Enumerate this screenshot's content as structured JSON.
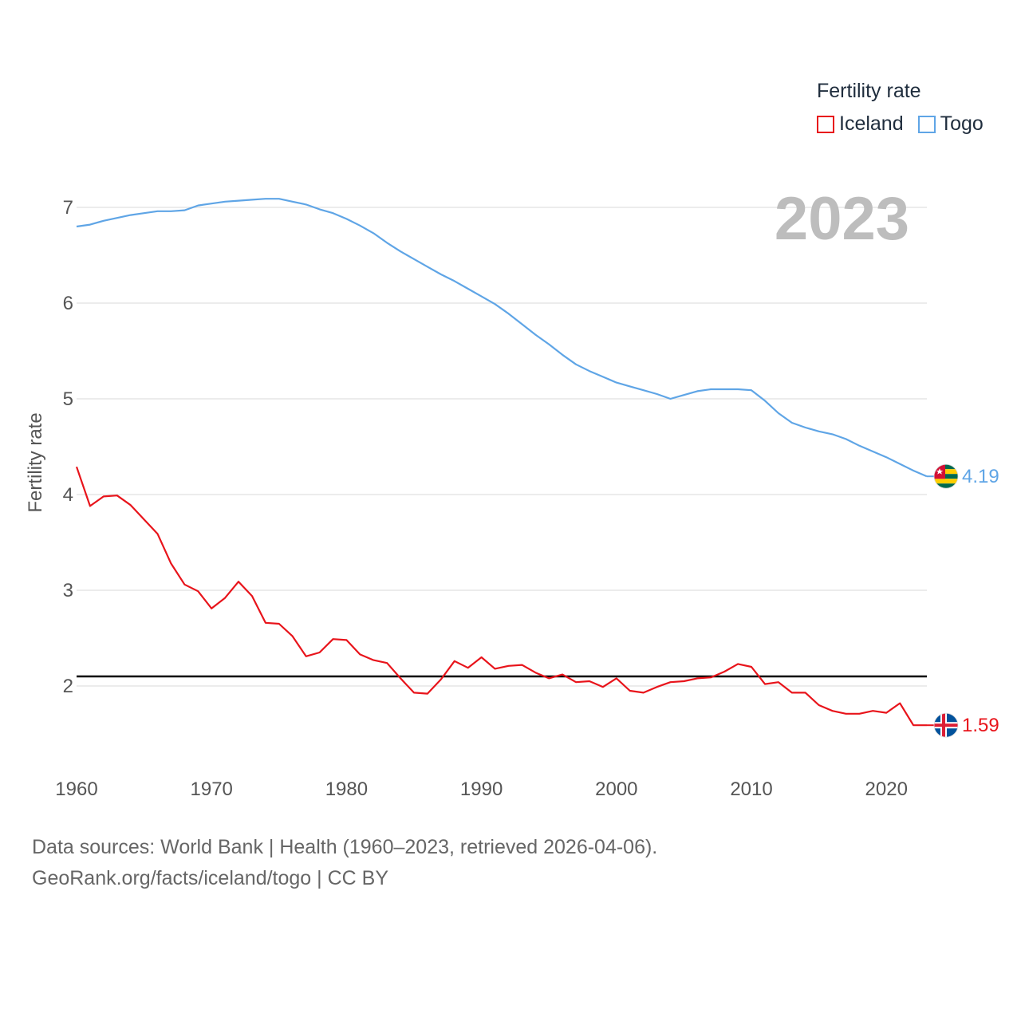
{
  "legend": {
    "title": "Fertility rate",
    "items": [
      {
        "name": "Iceland",
        "color": "#e8141b"
      },
      {
        "name": "Togo",
        "color": "#5fa5e6"
      }
    ]
  },
  "footer": {
    "line1": "Data sources: World Bank | Health (1960–2023, retrieved 2026-04-06).",
    "line2": "GeoRank.org/facts/iceland/togo | CC BY"
  },
  "chart_data": {
    "type": "line",
    "title": "",
    "current_year_label": "2023",
    "xlabel": "",
    "ylabel": "Fertility rate",
    "xlim": [
      1960,
      2023
    ],
    "ylim": [
      1.2,
      7.3
    ],
    "x_ticks": [
      "1960",
      "1970",
      "1980",
      "1990",
      "2000",
      "2010",
      "2020"
    ],
    "y_ticks": [
      "2",
      "3",
      "4",
      "5",
      "6",
      "7"
    ],
    "reference_line": {
      "value": 2.1,
      "color": "#000000"
    },
    "x": [
      1960,
      1961,
      1962,
      1963,
      1964,
      1965,
      1966,
      1967,
      1968,
      1969,
      1970,
      1971,
      1972,
      1973,
      1974,
      1975,
      1976,
      1977,
      1978,
      1979,
      1980,
      1981,
      1982,
      1983,
      1984,
      1985,
      1986,
      1987,
      1988,
      1989,
      1990,
      1991,
      1992,
      1993,
      1994,
      1995,
      1996,
      1997,
      1998,
      1999,
      2000,
      2001,
      2002,
      2003,
      2004,
      2005,
      2006,
      2007,
      2008,
      2009,
      2010,
      2011,
      2012,
      2013,
      2014,
      2015,
      2016,
      2017,
      2018,
      2019,
      2020,
      2021,
      2022,
      2023
    ],
    "series": [
      {
        "name": "Togo",
        "color": "#5fa5e6",
        "end_label": "4.19",
        "values": [
          6.8,
          6.82,
          6.86,
          6.89,
          6.92,
          6.94,
          6.96,
          6.96,
          6.97,
          7.02,
          7.04,
          7.06,
          7.07,
          7.08,
          7.09,
          7.09,
          7.06,
          7.03,
          6.98,
          6.94,
          6.88,
          6.81,
          6.73,
          6.63,
          6.54,
          6.46,
          6.38,
          6.3,
          6.23,
          6.15,
          6.07,
          5.99,
          5.89,
          5.78,
          5.67,
          5.57,
          5.46,
          5.36,
          5.29,
          5.23,
          5.17,
          5.13,
          5.09,
          5.05,
          5.0,
          5.04,
          5.08,
          5.1,
          5.1,
          5.1,
          5.09,
          4.98,
          4.85,
          4.75,
          4.7,
          4.66,
          4.63,
          4.58,
          4.51,
          4.45,
          4.39,
          4.32,
          4.25,
          4.19
        ]
      },
      {
        "name": "Iceland",
        "color": "#e8141b",
        "end_label": "1.59",
        "values": [
          4.29,
          3.88,
          3.98,
          3.99,
          3.89,
          3.74,
          3.59,
          3.28,
          3.06,
          2.99,
          2.81,
          2.92,
          3.09,
          2.94,
          2.66,
          2.65,
          2.52,
          2.31,
          2.35,
          2.49,
          2.48,
          2.33,
          2.27,
          2.24,
          2.08,
          1.93,
          1.92,
          2.07,
          2.26,
          2.19,
          2.3,
          2.18,
          2.21,
          2.22,
          2.14,
          2.08,
          2.12,
          2.04,
          2.05,
          1.99,
          2.08,
          1.95,
          1.93,
          1.99,
          2.04,
          2.05,
          2.08,
          2.09,
          2.15,
          2.23,
          2.2,
          2.02,
          2.04,
          1.93,
          1.93,
          1.8,
          1.74,
          1.71,
          1.71,
          1.74,
          1.72,
          1.82,
          1.59,
          1.59
        ]
      }
    ]
  }
}
